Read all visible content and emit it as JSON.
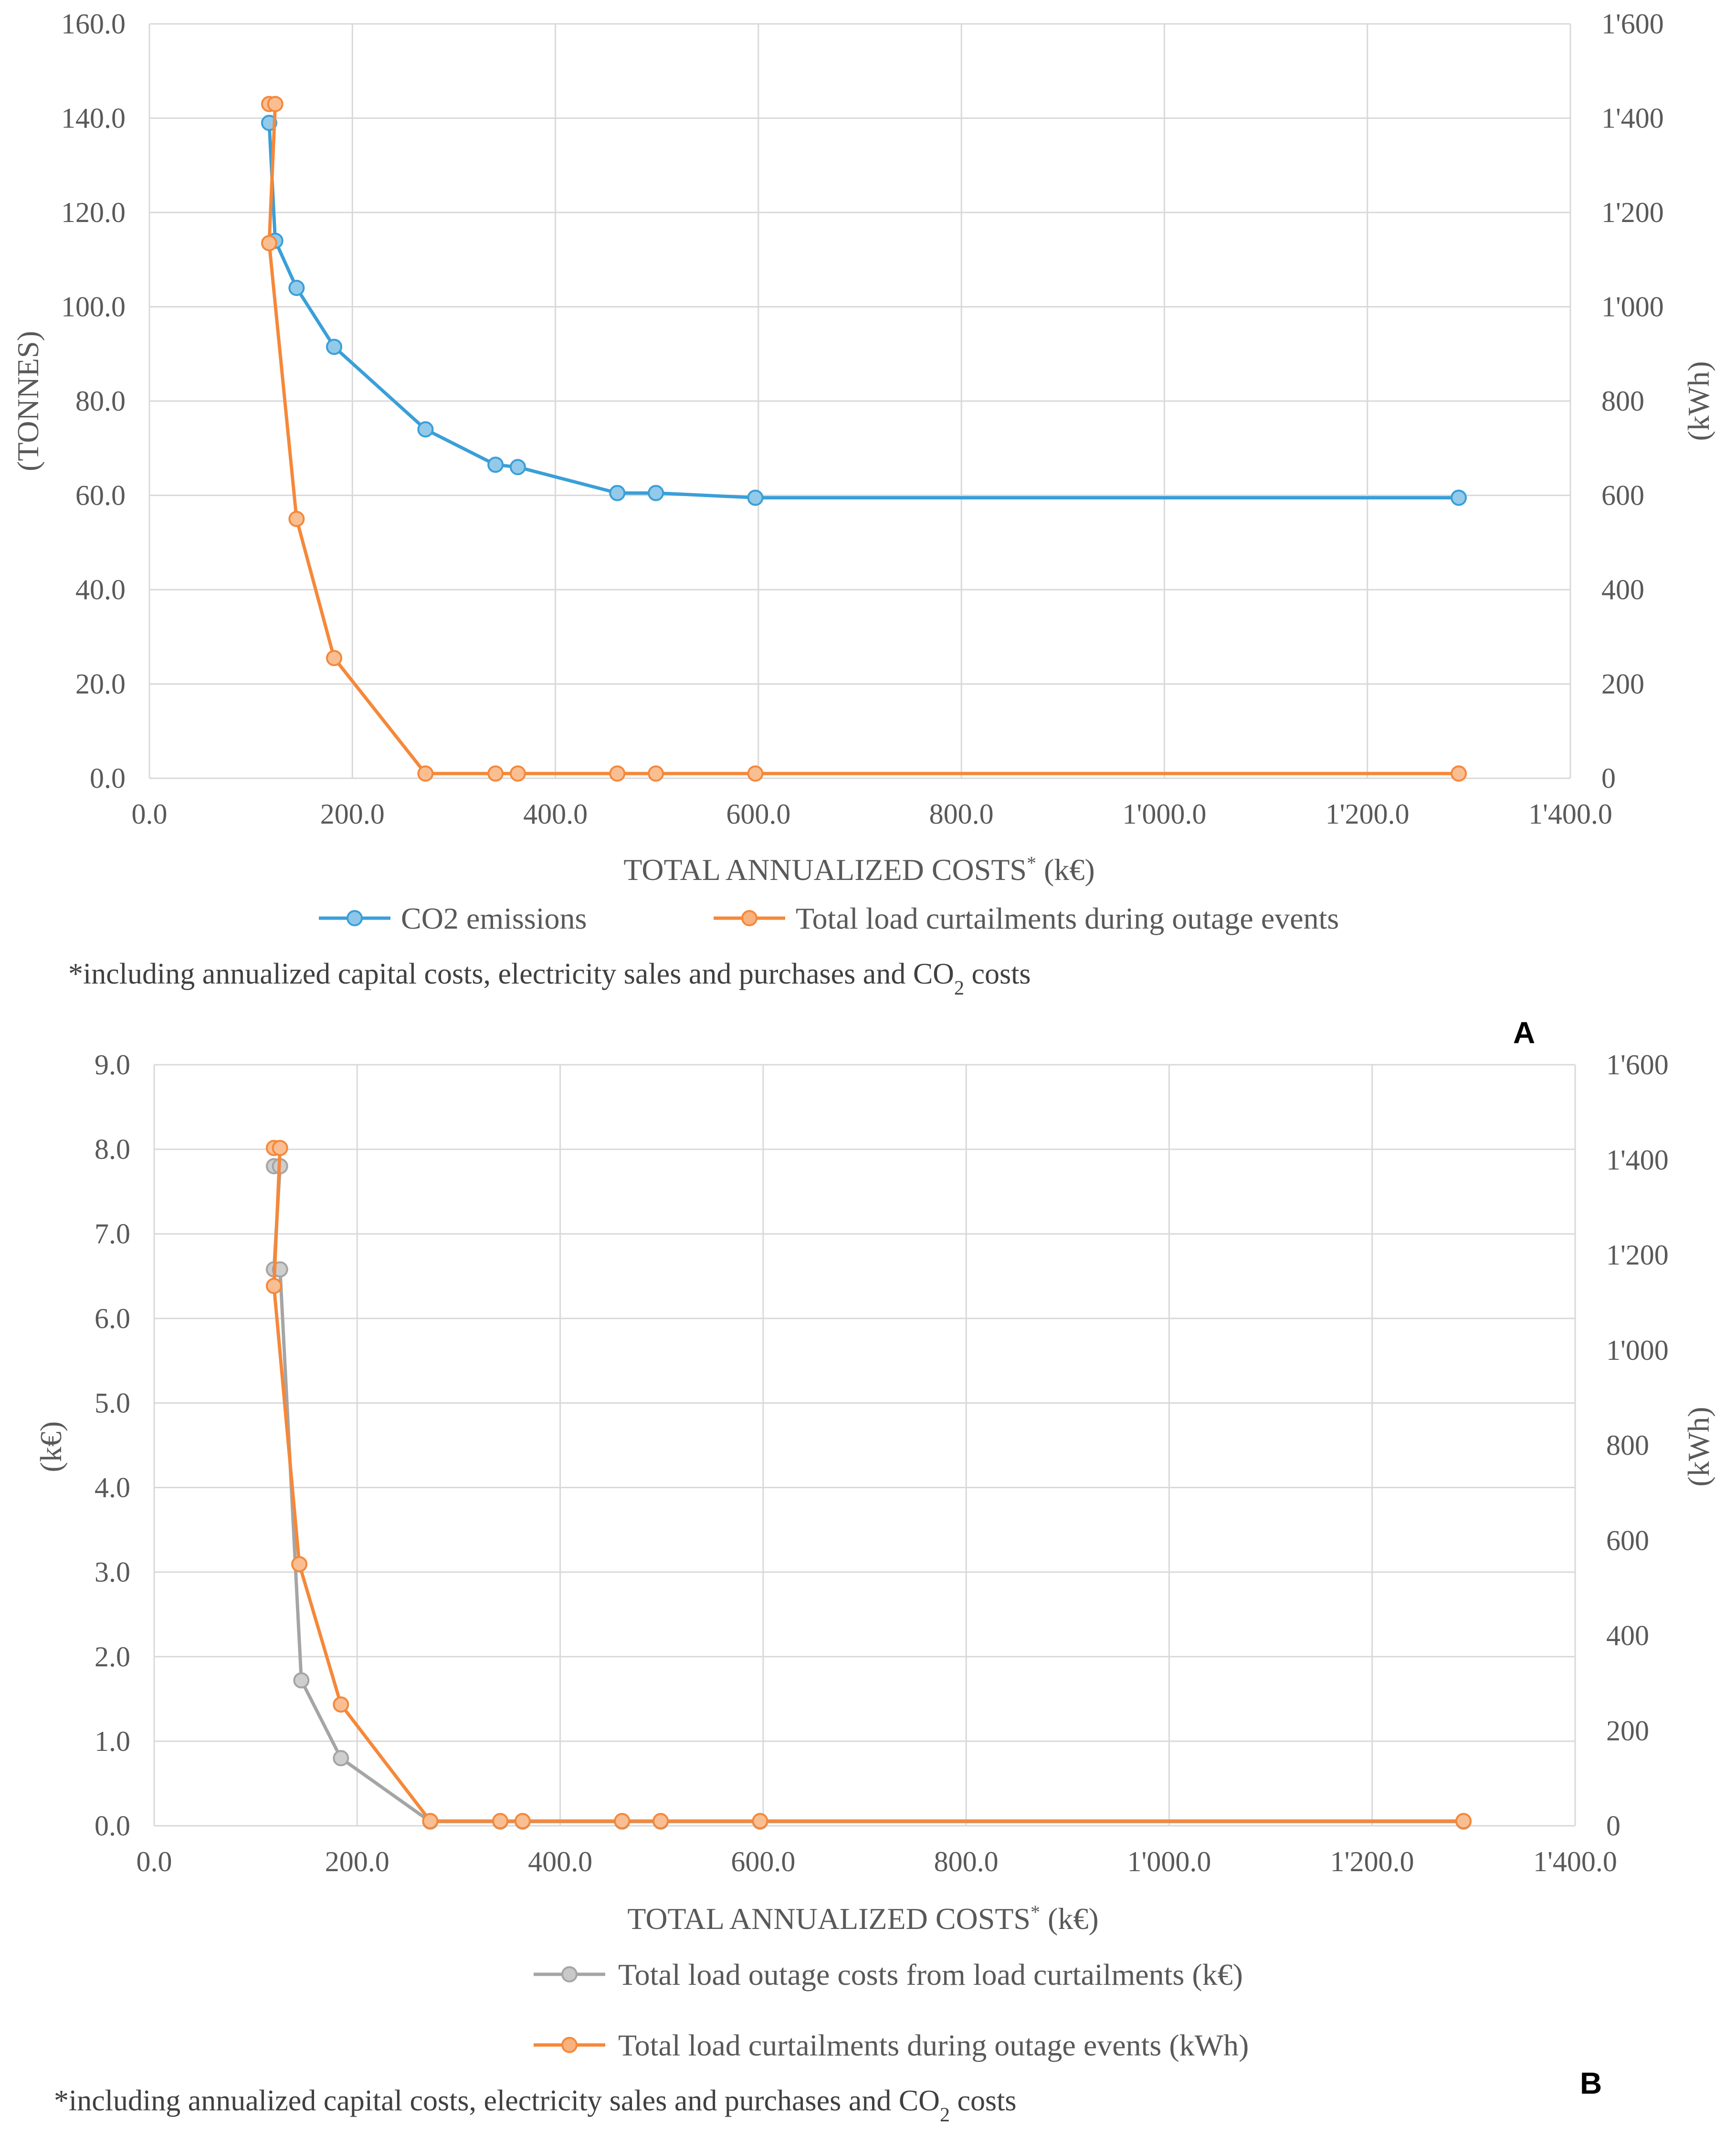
{
  "chart_data": [
    {
      "panel": "A",
      "type": "line",
      "xlabel": "TOTAL ANNUALIZED COSTS* (k€)",
      "ylabel_left": "(TONNES)",
      "ylabel_right": "(kWh)",
      "xlim": [
        0,
        1400
      ],
      "ylim_left": [
        0,
        160
      ],
      "ylim_right": [
        0,
        1600
      ],
      "x_ticks": [
        "0.0",
        "200.0",
        "400.0",
        "600.0",
        "800.0",
        "1'000.0",
        "1'200.0",
        "1'400.0"
      ],
      "y_left_ticks": [
        "0.0",
        "20.0",
        "40.0",
        "60.0",
        "80.0",
        "100.0",
        "120.0",
        "140.0",
        "160.0"
      ],
      "y_right_ticks": [
        "0",
        "200",
        "400",
        "600",
        "800",
        "1'000",
        "1'200",
        "1'400",
        "1'600"
      ],
      "grid": true,
      "legend_position": "bottom",
      "footnote": "*including annualized capital costs, electricity sales and purchases and CO₂ costs",
      "series": [
        {
          "name": "CO2 emissions",
          "axis": "left",
          "color": "#3a9fd8",
          "points": [
            [
              118,
              139
            ],
            [
              124,
              114
            ],
            [
              145,
              104
            ],
            [
              182,
              91.5
            ],
            [
              272,
              74
            ],
            [
              341,
              66.5
            ],
            [
              363,
              66
            ],
            [
              461,
              60.5
            ],
            [
              499,
              60.5
            ],
            [
              597,
              59.5
            ],
            [
              1290,
              59.5
            ]
          ]
        },
        {
          "name": "Total load curtailments during outage events",
          "axis": "right",
          "color": "#f5883a",
          "points": [
            [
              118,
              1430
            ],
            [
              124,
              1430
            ],
            [
              118,
              1135
            ],
            [
              145,
              550
            ],
            [
              182,
              255
            ],
            [
              272,
              10
            ],
            [
              341,
              10
            ],
            [
              363,
              10
            ],
            [
              461,
              10
            ],
            [
              499,
              10
            ],
            [
              597,
              10
            ],
            [
              1290,
              10
            ]
          ]
        }
      ]
    },
    {
      "panel": "B",
      "type": "line",
      "xlabel": "TOTAL ANNUALIZED COSTS* (k€)",
      "ylabel_left": "(k€)",
      "ylabel_right": "(kWh)",
      "xlim": [
        0,
        1400
      ],
      "ylim_left": [
        0,
        9
      ],
      "ylim_right": [
        0,
        1600
      ],
      "x_ticks": [
        "0.0",
        "200.0",
        "400.0",
        "600.0",
        "800.0",
        "1'000.0",
        "1'200.0",
        "1'400.0"
      ],
      "y_left_ticks": [
        "0.0",
        "1.0",
        "2.0",
        "3.0",
        "4.0",
        "5.0",
        "6.0",
        "7.0",
        "8.0",
        "9.0"
      ],
      "y_right_ticks": [
        "0",
        "200",
        "400",
        "600",
        "800",
        "1'000",
        "1'200",
        "1'400",
        "1'600"
      ],
      "grid": true,
      "legend_position": "bottom",
      "footnote": "*including annualized capital costs, electricity sales and purchases and CO₂ costs",
      "series": [
        {
          "name": "Total load outage costs from load curtailments (k€)",
          "axis": "left",
          "color": "#a5a5a5",
          "points": [
            [
              118,
              7.8
            ],
            [
              124,
              7.8
            ],
            [
              118,
              6.58
            ],
            [
              124,
              6.58
            ],
            [
              145,
              1.72
            ],
            [
              184,
              0.8
            ],
            [
              272,
              0.05
            ],
            [
              341,
              0.05
            ],
            [
              363,
              0.05
            ],
            [
              461,
              0.05
            ],
            [
              499,
              0.05
            ],
            [
              597,
              0.05
            ],
            [
              1290,
              0.05
            ]
          ]
        },
        {
          "name": "Total load curtailments during outage events (kWh)",
          "axis": "right",
          "color": "#f5883a",
          "points": [
            [
              118,
              1425
            ],
            [
              124,
              1425
            ],
            [
              118,
              1135
            ],
            [
              143,
              550
            ],
            [
              184,
              255
            ],
            [
              272,
              10
            ],
            [
              341,
              10
            ],
            [
              363,
              10
            ],
            [
              461,
              10
            ],
            [
              499,
              10
            ],
            [
              597,
              10
            ],
            [
              1290,
              10
            ]
          ]
        }
      ]
    }
  ]
}
